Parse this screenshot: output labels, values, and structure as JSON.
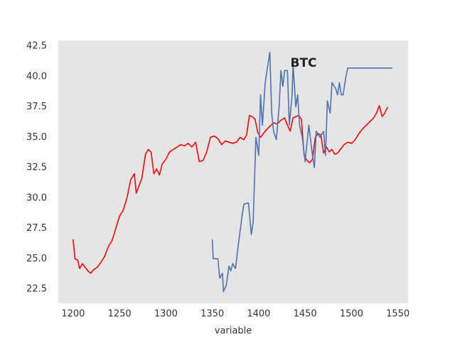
{
  "chart_data": {
    "type": "line",
    "title": "BTC",
    "x_label": "variable",
    "xlim": [
      1184,
      1561
    ],
    "xticks": [
      1200,
      1250,
      1300,
      1350,
      1400,
      1450,
      1500,
      1550
    ],
    "ylim": [
      21.33,
      42.97
    ],
    "yticks": [
      {
        "value": 22.5,
        "label": "22.5"
      },
      {
        "value": 25,
        "label": "25.0"
      },
      {
        "value": 27.5,
        "label": "27.5"
      },
      {
        "value": 30,
        "label": "30.0"
      },
      {
        "value": 32.5,
        "label": "32.5"
      },
      {
        "value": 35,
        "label": "35.0"
      },
      {
        "value": 37.5,
        "label": "37.5"
      },
      {
        "value": 40,
        "label": "40.0"
      },
      {
        "value": 42.5,
        "label": "42.5"
      }
    ],
    "grid": false,
    "series": [
      {
        "color": "#ff0000",
        "x": [
          1200,
          1202,
          1205,
          1207,
          1210,
          1213,
          1216,
          1219,
          1222,
          1226,
          1230,
          1234,
          1238,
          1242,
          1246,
          1250,
          1254,
          1258,
          1262,
          1266,
          1268,
          1271,
          1274,
          1278,
          1281,
          1284,
          1287,
          1290,
          1293,
          1296,
          1300,
          1304,
          1308,
          1312,
          1316,
          1320,
          1324,
          1328,
          1332,
          1336,
          1340,
          1344,
          1348,
          1352,
          1356,
          1360,
          1364,
          1368,
          1372,
          1376,
          1380,
          1384,
          1387,
          1390,
          1393,
          1396,
          1399,
          1402,
          1405,
          1408,
          1412,
          1416,
          1420,
          1424,
          1428,
          1431,
          1434,
          1437,
          1440,
          1443,
          1446,
          1449,
          1452,
          1455,
          1458,
          1461,
          1464,
          1467,
          1470,
          1473,
          1476,
          1479,
          1482,
          1485,
          1488,
          1492,
          1496,
          1500,
          1504,
          1508,
          1512,
          1516,
          1520,
          1524,
          1527,
          1530,
          1533,
          1536,
          1539
        ],
        "values": [
          26.6,
          25.0,
          24.9,
          24.2,
          24.6,
          24.3,
          24.0,
          23.8,
          24.1,
          24.3,
          24.7,
          25.2,
          26.0,
          26.5,
          27.5,
          28.5,
          29.0,
          30.0,
          31.5,
          32.0,
          30.4,
          31.0,
          31.6,
          33.6,
          34.0,
          33.8,
          32.0,
          32.4,
          31.9,
          32.8,
          33.2,
          33.8,
          34.0,
          34.2,
          34.4,
          34.3,
          34.5,
          34.2,
          34.6,
          33.0,
          33.1,
          33.8,
          35.0,
          35.1,
          34.9,
          34.4,
          34.7,
          34.6,
          34.5,
          34.6,
          35.0,
          34.8,
          35.2,
          36.8,
          36.7,
          36.5,
          35.4,
          35.0,
          35.3,
          35.6,
          35.9,
          36.2,
          36.1,
          36.4,
          36.6,
          36.0,
          35.5,
          36.6,
          36.7,
          36.8,
          36.5,
          33.5,
          33.1,
          32.9,
          33.2,
          35.0,
          35.3,
          35.2,
          33.7,
          34.2,
          33.8,
          34.0,
          33.6,
          33.7,
          34.0,
          34.4,
          34.6,
          34.5,
          34.8,
          35.3,
          35.7,
          36.0,
          36.3,
          36.6,
          37.0,
          37.6,
          36.7,
          37.0,
          37.5
        ]
      },
      {
        "color": "#4c72b0",
        "x": [
          1350,
          1351,
          1356,
          1358,
          1361,
          1362,
          1365,
          1368,
          1370,
          1372,
          1375,
          1377,
          1382,
          1384,
          1389,
          1392,
          1394,
          1397,
          1400,
          1402,
          1404,
          1407,
          1409,
          1412,
          1414,
          1416,
          1419,
          1422,
          1424,
          1426,
          1428,
          1431,
          1433,
          1436,
          1437,
          1440,
          1442,
          1444,
          1447,
          1450,
          1454,
          1458,
          1460,
          1462,
          1466,
          1470,
          1472,
          1474,
          1477,
          1479,
          1483,
          1485,
          1487,
          1489,
          1491,
          1494,
          1496,
          1544
        ],
        "values": [
          26.6,
          25.0,
          25.0,
          23.4,
          23.8,
          22.3,
          22.8,
          24.4,
          24.0,
          24.6,
          24.2,
          25.5,
          28.5,
          29.5,
          29.6,
          27.0,
          28.0,
          35.0,
          33.5,
          38.5,
          36.0,
          39.5,
          40.5,
          42.0,
          37.0,
          35.5,
          34.8,
          37.5,
          40.5,
          39.2,
          40.5,
          40.5,
          36.0,
          38.5,
          41.0,
          37.5,
          38.5,
          36.0,
          35.0,
          33.0,
          36.0,
          33.5,
          32.5,
          35.5,
          35.0,
          35.5,
          33.5,
          38.0,
          37.0,
          39.5,
          39.0,
          38.5,
          39.5,
          38.5,
          38.5,
          40.0,
          40.7,
          40.7
        ]
      }
    ]
  }
}
